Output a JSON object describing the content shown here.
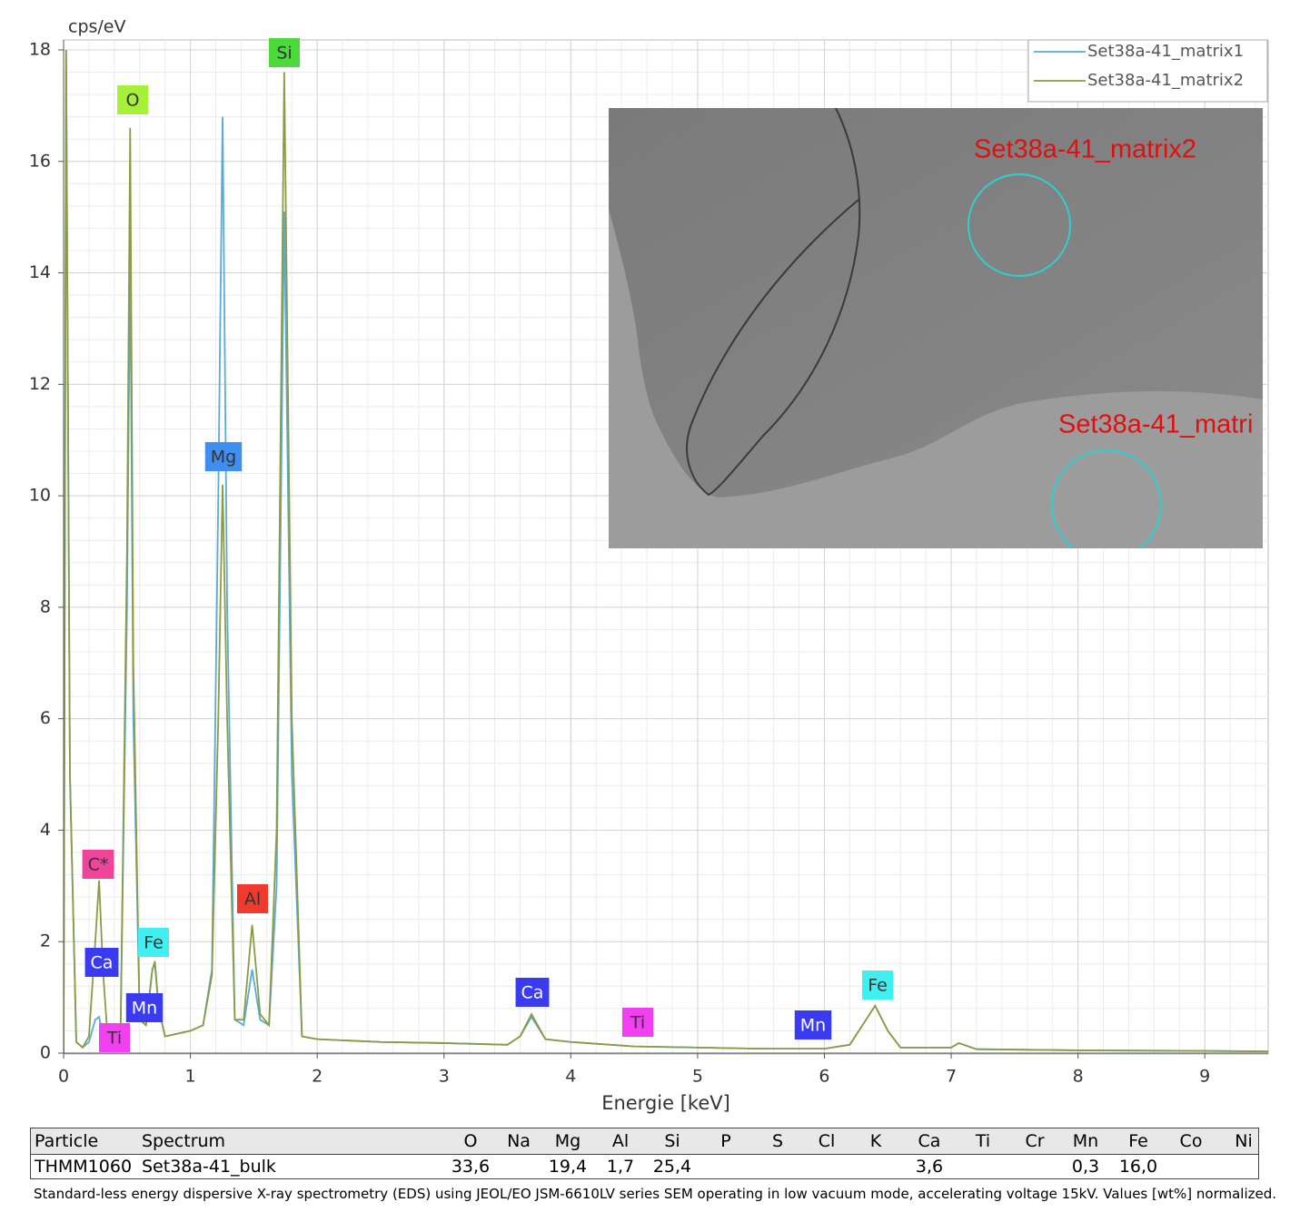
{
  "chart_data": {
    "type": "line",
    "y_label": "cps/eV",
    "x_label": "Energie [keV]",
    "xlim": [
      0,
      9.5
    ],
    "xticks": [
      0,
      1,
      2,
      3,
      4,
      5,
      6,
      7,
      8,
      9
    ],
    "ylim": [
      0,
      18
    ],
    "yticks": [
      0,
      2,
      4,
      6,
      8,
      10,
      12,
      14,
      16,
      18
    ],
    "grid": true,
    "legend": "upper right",
    "x": [
      0,
      0.02,
      0.05,
      0.1,
      0.15,
      0.2,
      0.25,
      0.28,
      0.31,
      0.35,
      0.4,
      0.45,
      0.5,
      0.525,
      0.55,
      0.6,
      0.65,
      0.7,
      0.72,
      0.75,
      0.8,
      0.9,
      1.0,
      1.1,
      1.17,
      1.22,
      1.254,
      1.29,
      1.35,
      1.42,
      1.487,
      1.55,
      1.62,
      1.68,
      1.74,
      1.8,
      1.88,
      2.0,
      2.5,
      3.0,
      3.5,
      3.6,
      3.69,
      3.8,
      4.0,
      4.5,
      5.0,
      5.5,
      6.0,
      6.2,
      6.3,
      6.4,
      6.5,
      6.6,
      7.0,
      7.06,
      7.2,
      8.0,
      9.0,
      9.5
    ],
    "series": [
      {
        "name": "Set38a-41_matrix1",
        "color": "#5aaad8",
        "values": [
          0,
          18,
          5,
          0.2,
          0.1,
          0.2,
          0.6,
          0.65,
          0.3,
          0.2,
          0.25,
          0.5,
          8,
          14.3,
          6,
          0.6,
          0.5,
          1.5,
          1.6,
          0.8,
          0.3,
          0.35,
          0.4,
          0.5,
          1.5,
          10,
          16.8,
          8,
          0.6,
          0.5,
          1.5,
          0.6,
          0.5,
          3,
          15.1,
          5,
          0.3,
          0.25,
          0.2,
          0.18,
          0.15,
          0.3,
          0.65,
          0.25,
          0.2,
          0.12,
          0.1,
          0.08,
          0.08,
          0.15,
          0.5,
          0.85,
          0.4,
          0.1,
          0.1,
          0.18,
          0.07,
          0.05,
          0.04,
          0.03
        ]
      },
      {
        "name": "Set38a-41_matrix2",
        "color": "#8a9c42",
        "values": [
          0,
          18,
          5,
          0.2,
          0.1,
          0.3,
          2.0,
          3.1,
          1.5,
          0.2,
          0.25,
          0.5,
          9,
          16.6,
          7,
          0.6,
          0.5,
          1.5,
          1.65,
          0.8,
          0.3,
          0.35,
          0.4,
          0.5,
          1.4,
          6,
          10.2,
          6,
          0.6,
          0.6,
          2.3,
          0.7,
          0.5,
          4,
          17.6,
          6,
          0.3,
          0.25,
          0.2,
          0.18,
          0.15,
          0.3,
          0.7,
          0.25,
          0.2,
          0.12,
          0.1,
          0.08,
          0.08,
          0.15,
          0.5,
          0.85,
          0.4,
          0.1,
          0.1,
          0.18,
          0.07,
          0.05,
          0.04,
          0.03
        ]
      }
    ],
    "annotations": [
      {
        "text": "O",
        "color": "#a6f03a"
      },
      {
        "text": "Si",
        "color": "#4cd93c"
      },
      {
        "text": "Mg",
        "color": "#3f8ef0"
      },
      {
        "text": "C*",
        "color": "#f0449a"
      },
      {
        "text": "Al",
        "color": "#f03a2e"
      },
      {
        "text": "Fe",
        "color": "#40f0f0"
      },
      {
        "text": "Ca",
        "color": "#3a3af0"
      },
      {
        "text": "Mn",
        "color": "#3a3af0"
      },
      {
        "text": "Ti",
        "color": "#f040f0"
      },
      {
        "text": "Ca",
        "color": "#3a3af0"
      },
      {
        "text": "Ti",
        "color": "#f040f0"
      },
      {
        "text": "Mn",
        "color": "#3a3af0"
      },
      {
        "text": "Fe",
        "color": "#40f0f0"
      }
    ],
    "inset_labels": [
      "Set38a-41_matrix2",
      "Set38a-41_matri"
    ]
  },
  "table": {
    "columns": [
      "Particle",
      "Spectrum",
      "O",
      "Na",
      "Mg",
      "Al",
      "Si",
      "P",
      "S",
      "Cl",
      "K",
      "Ca",
      "Ti",
      "Cr",
      "Mn",
      "Fe",
      "Co",
      "Ni"
    ],
    "rows": [
      [
        "THMM1060",
        "Set38a-41_bulk",
        "33,6",
        null,
        "19,4",
        "1,7",
        "25,4",
        null,
        null,
        null,
        null,
        "3,6",
        null,
        null,
        "0,3",
        "16,0",
        null,
        null
      ]
    ]
  },
  "note": "Standard-less energy dispersive X-ray spectrometry (EDS) using JEOL/EO JSM-6610LV series SEM operating in low vacuum mode, accelerating voltage 15kV. Values [wt%] normalized."
}
